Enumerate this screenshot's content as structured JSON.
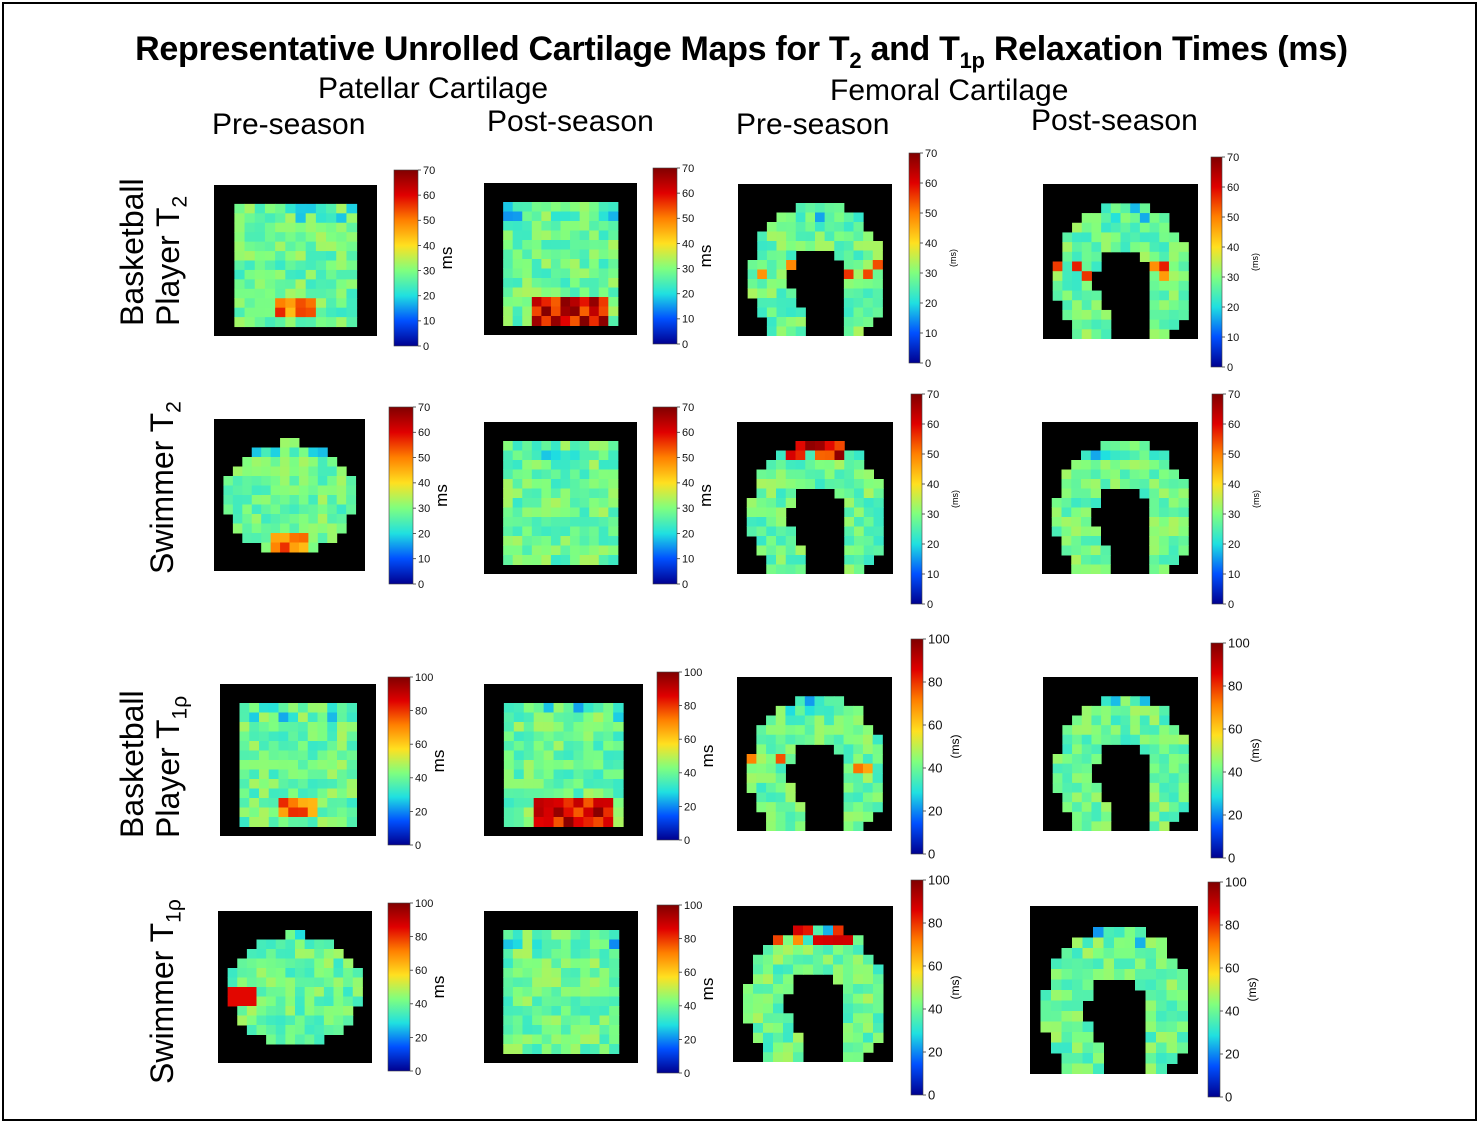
{
  "title": {
    "prefix": "Representative Unrolled Cartilage Maps for T",
    "sub1": "2",
    "mid": " and T",
    "sub2": "1p",
    "suffix": " Relaxation Times (ms)"
  },
  "headers": {
    "patellar": "Patellar Cartilage",
    "femoral": "Femoral Cartilage",
    "pre": "Pre-season",
    "post": "Post-season"
  },
  "rows": [
    {
      "line1": "Basketball",
      "line2": "Player T",
      "sub": "2"
    },
    {
      "line1": "",
      "line2": "Swimmer T",
      "sub": "2"
    },
    {
      "line1": "Basketball",
      "line2": "Player T",
      "sub": "1ρ"
    },
    {
      "line1": "",
      "line2": "Swimmer T",
      "sub": "1ρ"
    }
  ],
  "colorbars": {
    "t2": {
      "ticks": [
        "0",
        "10",
        "20",
        "30",
        "40",
        "50",
        "60",
        "70"
      ],
      "unit_patellar": "ms",
      "unit_femoral": "(ms)"
    },
    "t1rho": {
      "ticks": [
        "0",
        "20",
        "40",
        "60",
        "80",
        "100"
      ],
      "unit_patellar": "ms",
      "unit_femoral": "(ms)"
    }
  },
  "colors": {
    "dark_blue": "#00008f",
    "blue": "#0050ff",
    "cyan": "#20e0e0",
    "green": "#7fff7f",
    "yellow": "#ffe020",
    "orange": "#ff8000",
    "red": "#e00000",
    "dark_red": "#800000"
  }
}
